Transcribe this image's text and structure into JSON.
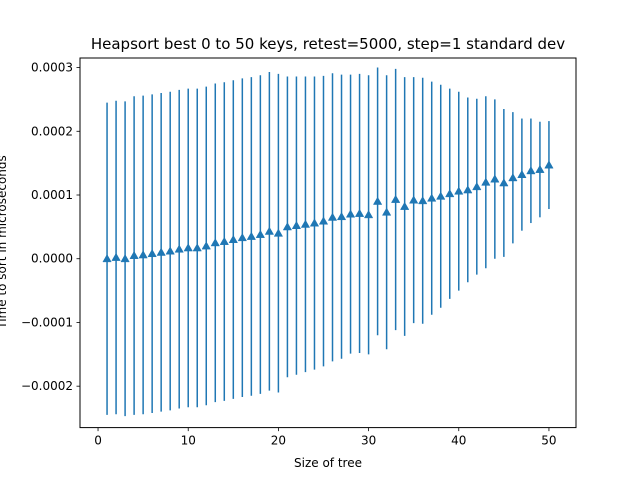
{
  "chart_data": {
    "type": "scatter",
    "title": "Heapsort best 0 to 50 keys, retest=5000, step=1 standard dev",
    "xlabel": "Size of tree",
    "ylabel": "Time to sort in microseconds",
    "xlim": [
      -2,
      53
    ],
    "ylim": [
      -0.000265,
      0.000315
    ],
    "xticks": [
      0,
      10,
      20,
      30,
      40,
      50
    ],
    "yticks": [
      -0.0002,
      -0.0001,
      0.0,
      0.0001,
      0.0002,
      0.0003
    ],
    "ytick_labels": [
      "−0.0002",
      "−0.0001",
      "0.0000",
      "0.0001",
      "0.0002",
      "0.0003"
    ],
    "grid": false,
    "marker": "triangle",
    "color": "#1f77b4",
    "series": [
      {
        "x": [
          1,
          2,
          3,
          4,
          5,
          6,
          7,
          8,
          9,
          10,
          11,
          12,
          13,
          14,
          15,
          16,
          17,
          18,
          19,
          20,
          21,
          22,
          23,
          24,
          25,
          26,
          27,
          28,
          29,
          30,
          31,
          32,
          33,
          34,
          35,
          36,
          37,
          38,
          39,
          40,
          41,
          42,
          43,
          44,
          45,
          46,
          47,
          48,
          49,
          50
        ],
        "y": [
          0.0,
          2e-06,
          0.0,
          5e-06,
          6e-06,
          8e-06,
          1e-05,
          1.2e-05,
          1.5e-05,
          1.7e-05,
          1.7e-05,
          2e-05,
          2.5e-05,
          2.7e-05,
          3e-05,
          3.3e-05,
          3.5e-05,
          3.8e-05,
          4.3e-05,
          4e-05,
          5e-05,
          5.2e-05,
          5.4e-05,
          5.6e-05,
          5.9e-05,
          6.5e-05,
          6.6e-05,
          7e-05,
          7.1e-05,
          6.9e-05,
          9e-05,
          7.3e-05,
          9.3e-05,
          8.2e-05,
          9.2e-05,
          9.1e-05,
          9.5e-05,
          9.8e-05,
          0.000102,
          0.000106,
          0.000108,
          0.000113,
          0.00012,
          0.000125,
          0.000119,
          0.000127,
          0.000132,
          0.000138,
          0.00014,
          0.000147
        ],
        "err": [
          0.000245,
          0.000246,
          0.000247,
          0.00025,
          0.00025,
          0.00025,
          0.00025,
          0.00025,
          0.00025,
          0.00025,
          0.00025,
          0.00025,
          0.00025,
          0.00025,
          0.00025,
          0.00025,
          0.00025,
          0.00025,
          0.00025,
          0.00025,
          0.000236,
          0.000234,
          0.000232,
          0.00023,
          0.000228,
          0.000226,
          0.000223,
          0.000219,
          0.000219,
          0.000219,
          0.00021,
          0.000215,
          0.000205,
          0.000203,
          0.000193,
          0.000193,
          0.000183,
          0.000175,
          0.000165,
          0.000156,
          0.000145,
          0.000138,
          0.000135,
          0.000125,
          0.000116,
          0.000103,
          8.8e-05,
          8.2e-05,
          7.5e-05,
          6.9e-05
        ]
      }
    ]
  }
}
